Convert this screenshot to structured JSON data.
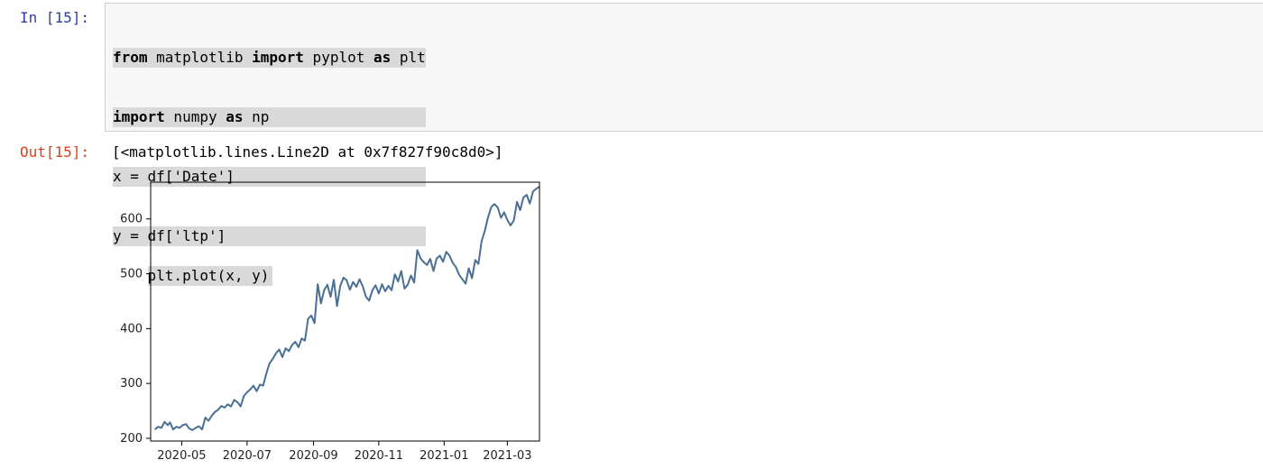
{
  "cell": {
    "in_prompt": "In [15]:",
    "out_prompt": "Out[15]:",
    "code_lines": [
      {
        "kw1": "from",
        "t1": " matplotlib ",
        "kw2": "import",
        "t2": " pyplot ",
        "kw3": "as",
        "t3": " plt"
      },
      {
        "kw1": "import",
        "t1": " numpy ",
        "kw2": "as",
        "t2": " np"
      },
      {
        "t1": "x = df['Date']"
      },
      {
        "t1": "y = df['ltp']"
      },
      {
        "t1": "plt.plot(x, y)"
      }
    ],
    "output_text": "[<matplotlib.lines.Line2D at 0x7f827f90c8d0>]"
  },
  "chart_data": {
    "type": "line",
    "title": "",
    "xlabel": "",
    "ylabel": "",
    "x_range": [
      "2020-04-02",
      "2021-03-31"
    ],
    "ylim": [
      195,
      667
    ],
    "x_ticks": [
      "2020-05",
      "2020-07",
      "2020-09",
      "2020-11",
      "2021-01",
      "2021-03"
    ],
    "y_ticks": [
      200,
      300,
      400,
      500,
      600
    ],
    "line_color": "#4a6f94",
    "grid": false,
    "series": [
      {
        "x": [
          "2020-04-06",
          "2020-04-09",
          "2020-04-12",
          "2020-04-15",
          "2020-04-18",
          "2020-04-20",
          "2020-04-23",
          "2020-04-26",
          "2020-04-29",
          "2020-05-02",
          "2020-05-05",
          "2020-05-08",
          "2020-05-11",
          "2020-05-14",
          "2020-05-17",
          "2020-05-20",
          "2020-05-23",
          "2020-05-26",
          "2020-05-29",
          "2020-06-01",
          "2020-06-04",
          "2020-06-07",
          "2020-06-10",
          "2020-06-13",
          "2020-06-16",
          "2020-06-19",
          "2020-06-22",
          "2020-06-25",
          "2020-06-28",
          "2020-07-01",
          "2020-07-04",
          "2020-07-07",
          "2020-07-10",
          "2020-07-13",
          "2020-07-16",
          "2020-07-19",
          "2020-07-22",
          "2020-07-25",
          "2020-07-28",
          "2020-07-31",
          "2020-08-03",
          "2020-08-06",
          "2020-08-09",
          "2020-08-12",
          "2020-08-15",
          "2020-08-18",
          "2020-08-21",
          "2020-08-24",
          "2020-08-27",
          "2020-08-30",
          "2020-09-02",
          "2020-09-05",
          "2020-09-08",
          "2020-09-11",
          "2020-09-14",
          "2020-09-17",
          "2020-09-20",
          "2020-09-23",
          "2020-09-26",
          "2020-09-29",
          "2020-10-02",
          "2020-10-05",
          "2020-10-08",
          "2020-10-11",
          "2020-10-14",
          "2020-10-17",
          "2020-10-20",
          "2020-10-23",
          "2020-10-26",
          "2020-10-29",
          "2020-11-01",
          "2020-11-04",
          "2020-11-07",
          "2020-11-10",
          "2020-11-13",
          "2020-11-16",
          "2020-11-19",
          "2020-11-22",
          "2020-11-25",
          "2020-11-28",
          "2020-12-01",
          "2020-12-04",
          "2020-12-07",
          "2020-12-10",
          "2020-12-13",
          "2020-12-16",
          "2020-12-19",
          "2020-12-22",
          "2020-12-25",
          "2020-12-28",
          "2020-12-31",
          "2021-01-03",
          "2021-01-06",
          "2021-01-09",
          "2021-01-12",
          "2021-01-15",
          "2021-01-18",
          "2021-01-21",
          "2021-01-24",
          "2021-01-27",
          "2021-01-30",
          "2021-02-02",
          "2021-02-05",
          "2021-02-08",
          "2021-02-11",
          "2021-02-14",
          "2021-02-17",
          "2021-02-20",
          "2021-02-23",
          "2021-02-26",
          "2021-03-01",
          "2021-03-04",
          "2021-03-07",
          "2021-03-10",
          "2021-03-13",
          "2021-03-16",
          "2021-03-19",
          "2021-03-22",
          "2021-03-25",
          "2021-03-28",
          "2021-03-31"
        ],
        "y": [
          216,
          221,
          219,
          230,
          224,
          229,
          216,
          221,
          219,
          224,
          226,
          218,
          215,
          219,
          222,
          216,
          238,
          232,
          241,
          248,
          252,
          259,
          256,
          262,
          258,
          270,
          266,
          258,
          277,
          284,
          289,
          296,
          286,
          298,
          296,
          318,
          337,
          345,
          355,
          362,
          348,
          364,
          359,
          370,
          376,
          366,
          382,
          378,
          418,
          424,
          410,
          481,
          446,
          470,
          480,
          458,
          489,
          441,
          478,
          493,
          488,
          471,
          485,
          476,
          490,
          477,
          458,
          451,
          470,
          479,
          464,
          481,
          468,
          478,
          470,
          499,
          486,
          505,
          473,
          480,
          497,
          484,
          543,
          528,
          521,
          516,
          527,
          505,
          528,
          533,
          522,
          540,
          533,
          520,
          512,
          498,
          490,
          482,
          510,
          492,
          525,
          518,
          560,
          578,
          603,
          622,
          627,
          621,
          602,
          612,
          598,
          588,
          597,
          631,
          616,
          639,
          644,
          628,
          650,
          655,
          659
        ]
      }
    ]
  }
}
